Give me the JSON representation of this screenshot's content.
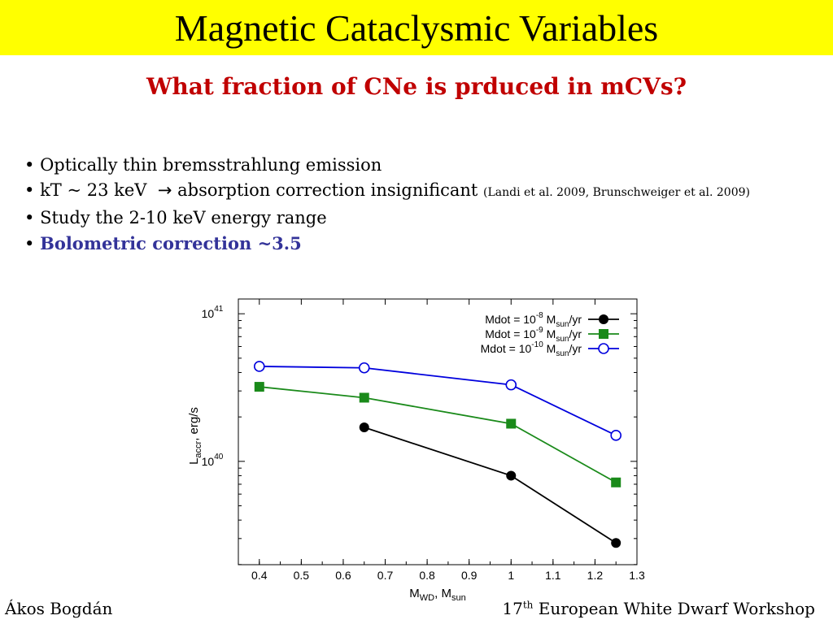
{
  "title": "Magnetic Cataclysmic Variables",
  "subtitle": "What fraction of CNe is prduced in mCVs?",
  "bullets": {
    "b1": "Optically thin bremsstrahlung emission",
    "b2_main": "kT ~ 23 keV  ",
    "b2_arrow": "→",
    "b2_rest": " absorption correction insignificant ",
    "b2_ref": "(Landi et al. 2009, Brunschweiger et al. 2009)",
    "b3": "Study the 2-10 keV energy range",
    "b4": "Bolometric correction ~3.5",
    "marker": "•"
  },
  "footer": {
    "author": "Ákos Bogdán",
    "event_num": "17",
    "event_sup": "th",
    "event_rest": " European White Dwarf Workshop"
  },
  "chart_data": {
    "type": "line",
    "xlabel": "M",
    "xlabel_sub": "WD",
    "xlabel_rest": ", M",
    "xlabel_sub2": "sun",
    "ylabel": "L",
    "ylabel_sub": "accr",
    "ylabel_rest": ", erg/s",
    "xlim": [
      0.35,
      1.3
    ],
    "ylim_log10": [
      39.3,
      41.1
    ],
    "y_scale": "log",
    "x_ticks": [
      0.4,
      0.5,
      0.6,
      0.7,
      0.8,
      0.9,
      1,
      1.1,
      1.2,
      1.3
    ],
    "x_tick_labels": [
      "0.4",
      "0.5",
      "0.6",
      "0.7",
      "0.8",
      "0.9",
      "1",
      "1.1",
      "1.2",
      "1.3"
    ],
    "y_ticks_log10": [
      40,
      41
    ],
    "y_tick_labels": [
      {
        "base": "10",
        "exp": "40"
      },
      {
        "base": "10",
        "exp": "41"
      }
    ],
    "legend_position": "top-right",
    "series": [
      {
        "name": "Mdot = 10^-8 M_sun/yr",
        "legend": {
          "pre": "Mdot = 10",
          "exp": "-8",
          "mid": " M",
          "sub": "sun",
          "post": "/yr"
        },
        "color": "#000000",
        "marker": "filled-circle",
        "x": [
          0.65,
          1.0,
          1.25
        ],
        "y": [
          1.7e+40,
          8e+39,
          2.8e+39
        ]
      },
      {
        "name": "Mdot = 10^-9 M_sun/yr",
        "legend": {
          "pre": "Mdot = 10",
          "exp": "-9",
          "mid": " M",
          "sub": "sun",
          "post": "/yr"
        },
        "color": "#1a8a1a",
        "marker": "filled-square",
        "x": [
          0.4,
          0.65,
          1.0,
          1.25
        ],
        "y": [
          3.2e+40,
          2.7e+40,
          1.8e+40,
          7.2e+39
        ]
      },
      {
        "name": "Mdot = 10^-10 M_sun/yr",
        "legend": {
          "pre": "Mdot = 10",
          "exp": "-10",
          "mid": " M",
          "sub": "sun",
          "post": "/yr"
        },
        "color": "#0000dd",
        "marker": "open-circle",
        "x": [
          0.4,
          0.65,
          1.0,
          1.25
        ],
        "y": [
          4.4e+40,
          4.3e+40,
          3.3e+40,
          1.5e+40
        ]
      }
    ]
  }
}
